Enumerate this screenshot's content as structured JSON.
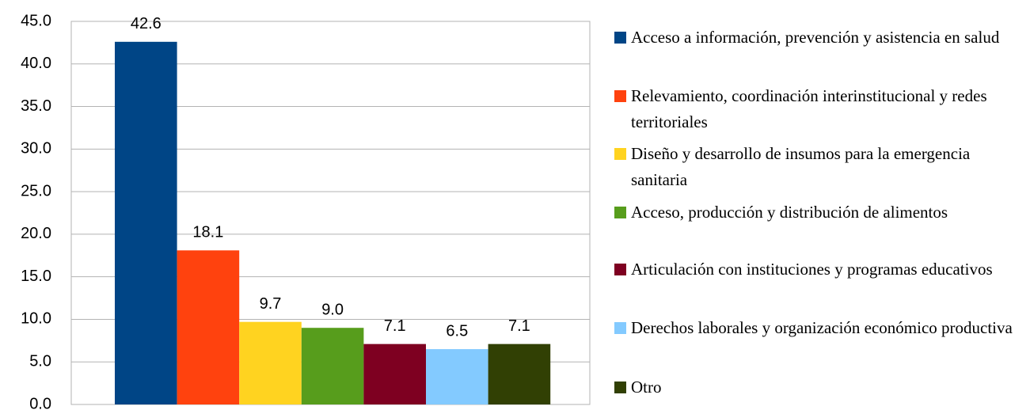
{
  "chart_data": {
    "type": "bar",
    "categories": [
      null
    ],
    "series": [
      {
        "name": "Acceso a información, prevención y asistencia en salud",
        "color": "#004586",
        "values": [
          42.6
        ],
        "value_labels": [
          "42.6"
        ]
      },
      {
        "name": "Relevamiento, coordinación interinstitucional y redes territoriales",
        "color": "#ff420e",
        "values": [
          18.1
        ],
        "value_labels": [
          "18.1"
        ]
      },
      {
        "name": "Diseño y desarrollo de insumos para la emergencia sanitaria",
        "color": "#ffd320",
        "values": [
          9.7
        ],
        "value_labels": [
          "9.7"
        ]
      },
      {
        "name": "Acceso, producción y distribución de alimentos",
        "color": "#579d1c",
        "values": [
          9.0
        ],
        "value_labels": [
          "9.0"
        ]
      },
      {
        "name": "Articulación con instituciones y programas educativos",
        "color": "#7e0021",
        "values": [
          7.1
        ],
        "value_labels": [
          "7.1"
        ]
      },
      {
        "name": "Derechos laborales y organización económico productiva",
        "color": "#83caff",
        "values": [
          6.5
        ],
        "value_labels": [
          "6.5"
        ]
      },
      {
        "name": "Otro",
        "color": "#314004",
        "values": [
          7.1
        ],
        "value_labels": [
          "7.1"
        ]
      }
    ],
    "ylim": [
      0,
      45
    ],
    "yticks": [
      {
        "value": 0,
        "label": "0.0"
      },
      {
        "value": 5,
        "label": "5.0"
      },
      {
        "value": 10,
        "label": "10.0"
      },
      {
        "value": 15,
        "label": "15.0"
      },
      {
        "value": 20,
        "label": "20.0"
      },
      {
        "value": 25,
        "label": "25.0"
      },
      {
        "value": 30,
        "label": "30.0"
      },
      {
        "value": 35,
        "label": "35.0"
      },
      {
        "value": 40,
        "label": "40.0"
      },
      {
        "value": 45,
        "label": "45.0"
      }
    ],
    "grid": true,
    "legend": "right"
  }
}
